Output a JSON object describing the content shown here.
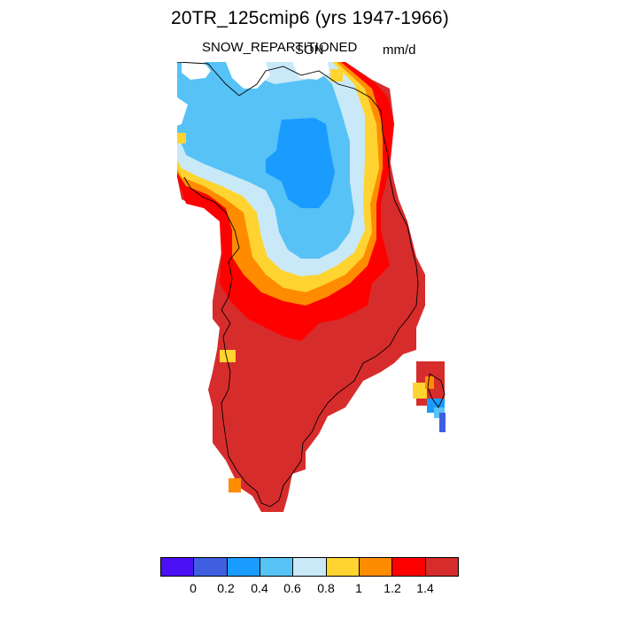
{
  "title": "20TR_125cmip6 (yrs 1947-1966)",
  "variable": "SNOW_REPARTITIONED",
  "season": "SON",
  "units": "mm/d",
  "colorbar": {
    "colors": [
      "#4c10f5",
      "#3f5fe0",
      "#1a9cff",
      "#57c2f5",
      "#c9e9f8",
      "#ffd430",
      "#ff8c00",
      "#ff0000",
      "#d72c2c"
    ],
    "labels": [
      "0",
      "0.2",
      "0.4",
      "0.6",
      "0.8",
      "1",
      "1.2",
      "1.4"
    ]
  },
  "map": {
    "region": "Greenland",
    "field": "snow repartitioned precipitation, SON mean",
    "colors": {
      "land": "#d72c2c",
      "band_red": "#ff0000",
      "band_orange": "#ff8c00",
      "band_yellow": "#ffd430",
      "band_pale": "#c9e9f8",
      "band_light": "#57c2f5",
      "band_blue": "#1a9cff",
      "band_royal": "#3f5fe0",
      "coast": "#000000"
    }
  }
}
